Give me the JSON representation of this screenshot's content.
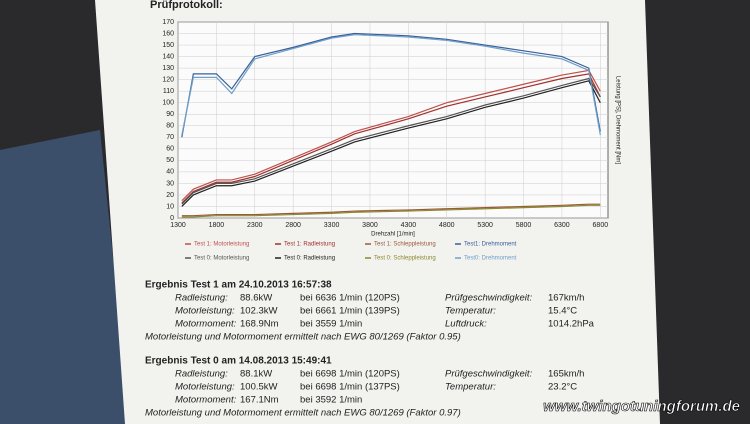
{
  "chart_data": {
    "type": "line",
    "title": "Prüfprotokoll:",
    "xlabel": "Drehzahl [1/min]",
    "ylabel": "Leistung [PS], Drehmoment [Nm]",
    "x": [
      1350,
      1500,
      1800,
      2000,
      2300,
      2800,
      3300,
      3600,
      4300,
      4800,
      5300,
      5800,
      6300,
      6650,
      6800
    ],
    "xlim": [
      1300,
      6900
    ],
    "xticks": [
      1300,
      1800,
      2300,
      2800,
      3300,
      3800,
      4300,
      4800,
      5300,
      5800,
      6300,
      6800
    ],
    "ylim": [
      0,
      170
    ],
    "yticks": [
      0,
      10,
      20,
      30,
      40,
      50,
      60,
      70,
      80,
      90,
      100,
      110,
      120,
      130,
      140,
      150,
      160,
      170
    ],
    "grid": true,
    "series": [
      {
        "name": "Test 1: Motorleistung",
        "color": "#c0504d",
        "values": [
          15,
          25,
          33,
          33,
          38,
          52,
          66,
          75,
          88,
          100,
          108,
          116,
          124,
          128,
          110
        ]
      },
      {
        "name": "Test 1: Radleistung",
        "color": "#a0302a",
        "values": [
          13,
          23,
          31,
          31,
          36,
          50,
          64,
          73,
          86,
          97,
          105,
          113,
          121,
          125,
          105
        ]
      },
      {
        "name": "Test 1: Schleppleistung",
        "color": "#9b5a3a",
        "values": [
          2,
          2,
          3,
          3,
          3,
          4,
          5,
          6,
          7,
          8,
          9,
          10,
          11,
          12,
          12
        ]
      },
      {
        "name": "Test1: Drehmoment",
        "color": "#3a5f9a",
        "values": [
          70,
          125,
          125,
          112,
          140,
          148,
          157,
          160,
          158,
          155,
          150,
          145,
          140,
          130,
          75
        ]
      },
      {
        "name": "Test 0: Motorleistung",
        "color": "#555555",
        "values": [
          12,
          22,
          30,
          30,
          34,
          47,
          60,
          68,
          80,
          88,
          98,
          106,
          115,
          121,
          105
        ]
      },
      {
        "name": "Test 0: Radleistung",
        "color": "#222222",
        "values": [
          10,
          20,
          28,
          28,
          32,
          45,
          58,
          66,
          78,
          86,
          96,
          104,
          113,
          119,
          100
        ]
      },
      {
        "name": "Test 0: Schleppleistung",
        "color": "#8a8a30",
        "values": [
          1,
          1,
          2,
          2,
          2,
          3,
          4,
          5,
          6,
          7,
          8,
          9,
          10,
          11,
          11
        ]
      },
      {
        "name": "Test0: Drehmoment",
        "color": "#6fa0c8",
        "values": [
          72,
          122,
          122,
          108,
          138,
          147,
          156,
          159,
          157,
          154,
          149,
          143,
          138,
          128,
          72
        ]
      }
    ]
  },
  "results": [
    {
      "heading": "Ergebnis Test 1 am 24.10.2013 16:57:38",
      "rows": [
        [
          "Radleistung:",
          "88.6kW",
          "bei 6636 1/min (120PS)",
          "Prüfgeschwindigkeit:",
          "167km/h"
        ],
        [
          "Motorleistung:",
          "102.3kW",
          "bei 6661 1/min (139PS)",
          "Temperatur:",
          "15.4°C"
        ],
        [
          "Motormoment:",
          "168.9Nm",
          "bei 3559 1/min",
          "Luftdruck:",
          "1014.2hPa"
        ]
      ],
      "note": "Motorleistung und Motormoment ermittelt nach EWG 80/1269 (Faktor 0.95)"
    },
    {
      "heading": "Ergebnis Test 0 am 14.08.2013 15:49:41",
      "rows": [
        [
          "Radleistung:",
          "88.1kW",
          "bei 6698 1/min (120PS)",
          "Prüfgeschwindigkeit:",
          "165km/h"
        ],
        [
          "Motorleistung:",
          "100.5kW",
          "bei 6698 1/min (137PS)",
          "Temperatur:",
          "23.2°C"
        ],
        [
          "Motormoment:",
          "167.1Nm",
          "bei 3592 1/min"
        ]
      ],
      "note": "Motorleistung und Motormoment ermittelt nach EWG 80/1269 (Faktor 0.97)"
    }
  ],
  "watermark": "www.twingotuningforum.de"
}
